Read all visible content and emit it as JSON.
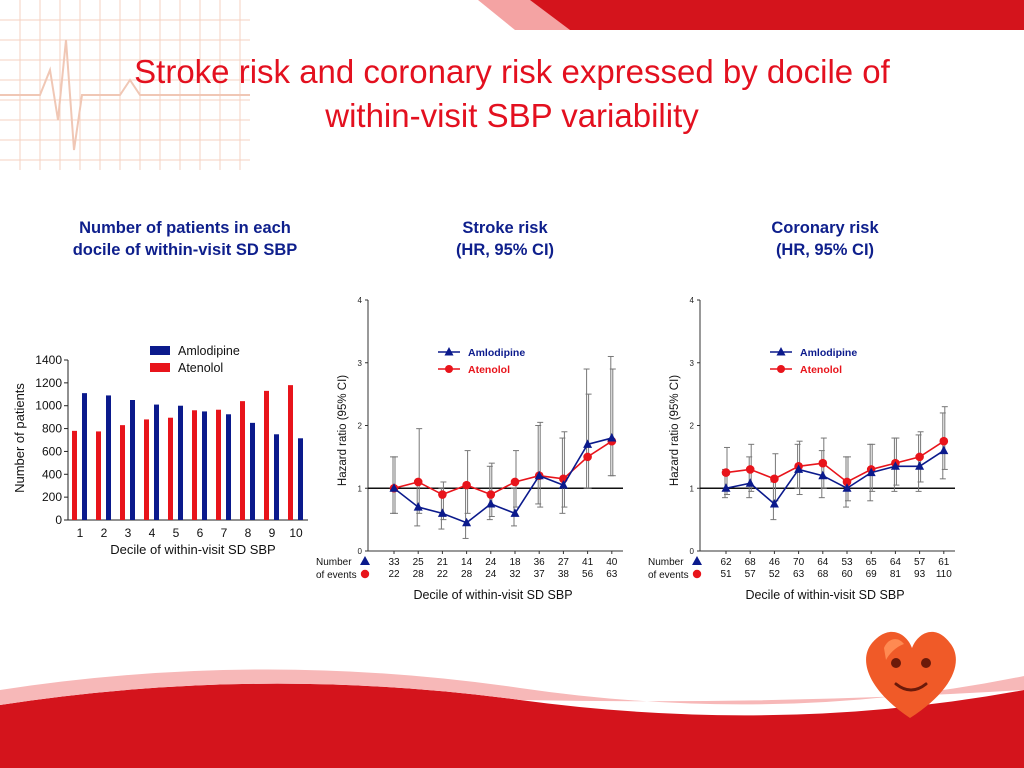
{
  "slide": {
    "title_line1": "Stroke risk and coronary risk expressed by docile of",
    "title_line2": "within-visit SBP variability"
  },
  "colors": {
    "title": "#e3101f",
    "panel_title": "#0e1f8c",
    "amlodipine": "#0b1a8c",
    "atenolol": "#e8141b"
  },
  "panels": {
    "counts_title_line1": "Number of patients in each",
    "counts_title_line2": "docile of within-visit SD SBP",
    "stroke_title_line1": "Stroke risk",
    "stroke_title_line2": "(HR, 95% CI)",
    "coronary_title_line1": "Coronary risk",
    "coronary_title_line2": "(HR, 95% CI)"
  },
  "chart_data": [
    {
      "type": "bar",
      "categories": [
        "1",
        "2",
        "3",
        "4",
        "5",
        "6",
        "7",
        "8",
        "9",
        "10"
      ],
      "series": [
        {
          "name": "Amlodipine",
          "color": "#0b1a8c",
          "values": [
            1110,
            1090,
            1050,
            1010,
            1000,
            950,
            925,
            850,
            750,
            715
          ]
        },
        {
          "name": "Atenolol",
          "color": "#e8141b",
          "values": [
            780,
            775,
            830,
            880,
            895,
            960,
            965,
            1040,
            1130,
            1180
          ]
        }
      ],
      "xlabel": "Decile of within-visit SD SBP",
      "ylabel": "Number of patients",
      "ylim": [
        0,
        1400
      ],
      "yticks": [
        0,
        200,
        400,
        600,
        800,
        1000,
        1200,
        1400
      ],
      "legend": "top"
    },
    {
      "type": "line",
      "x": [
        1,
        2,
        3,
        4,
        5,
        6,
        7,
        8,
        9,
        10
      ],
      "series": [
        {
          "name": "Amlodipine",
          "color": "#0b1a8c",
          "marker": "triangle",
          "values": [
            1.0,
            0.7,
            0.6,
            0.45,
            0.75,
            0.6,
            1.2,
            1.05,
            1.7,
            1.8
          ],
          "ci_low": [
            0.6,
            0.4,
            0.35,
            0.2,
            0.5,
            0.4,
            0.75,
            0.6,
            1.0,
            1.2
          ],
          "ci_high": [
            1.5,
            1.1,
            1.0,
            1.0,
            1.35,
            1.0,
            2.0,
            1.8,
            2.9,
            3.1
          ],
          "events": [
            "33",
            "25",
            "21",
            "14",
            "24",
            "18",
            "36",
            "27",
            "41",
            "40"
          ]
        },
        {
          "name": "Atenolol",
          "color": "#e8141b",
          "marker": "circle",
          "values": [
            1.0,
            1.1,
            0.9,
            1.05,
            0.9,
            1.1,
            1.2,
            1.15,
            1.5,
            1.75
          ],
          "ci_low": [
            0.6,
            0.6,
            0.5,
            0.6,
            0.55,
            0.7,
            0.7,
            0.7,
            1.0,
            1.2
          ],
          "ci_high": [
            1.5,
            1.95,
            1.1,
            1.6,
            1.4,
            1.6,
            2.05,
            1.9,
            2.5,
            2.9
          ],
          "events": [
            "22",
            "28",
            "22",
            "28",
            "24",
            "32",
            "37",
            "38",
            "56",
            "63"
          ]
        }
      ],
      "xlabel": "Decile of within-visit SD SBP",
      "ylabel": "Hazard  ratio (95% CI)",
      "ylim": [
        0,
        4
      ],
      "yticks": [
        0,
        1,
        2,
        3,
        4
      ],
      "reference_line": 1,
      "row_label_line1": "Number",
      "row_label_line2": "of events",
      "legend": "top-left"
    },
    {
      "type": "line",
      "x": [
        1,
        2,
        3,
        4,
        5,
        6,
        7,
        8,
        9,
        10
      ],
      "series": [
        {
          "name": "Amlodipine",
          "color": "#0b1a8c",
          "marker": "triangle",
          "values": [
            1.0,
            1.08,
            0.75,
            1.3,
            1.2,
            1.0,
            1.25,
            1.35,
            1.35,
            1.6
          ],
          "ci_low": [
            0.85,
            0.85,
            0.5,
            1.0,
            0.85,
            0.7,
            0.8,
            0.95,
            0.95,
            1.15
          ],
          "ci_high": [
            1.3,
            1.5,
            1.1,
            1.7,
            1.6,
            1.5,
            1.7,
            1.8,
            1.85,
            2.2
          ],
          "events": [
            "62",
            "68",
            "46",
            "70",
            "64",
            "53",
            "65",
            "64",
            "57",
            "61"
          ]
        },
        {
          "name": "Atenolol",
          "color": "#e8141b",
          "marker": "circle",
          "values": [
            1.25,
            1.3,
            1.15,
            1.35,
            1.4,
            1.1,
            1.3,
            1.4,
            1.5,
            1.75
          ],
          "ci_low": [
            0.9,
            0.95,
            0.8,
            0.9,
            1.0,
            0.8,
            0.95,
            1.05,
            1.1,
            1.3
          ],
          "ci_high": [
            1.65,
            1.7,
            1.55,
            1.75,
            1.8,
            1.5,
            1.7,
            1.8,
            1.9,
            2.3
          ],
          "events": [
            "51",
            "57",
            "52",
            "63",
            "68",
            "60",
            "69",
            "81",
            "93",
            "110"
          ]
        }
      ],
      "xlabel": "Decile of within-visit SD SBP",
      "ylabel": "Hazard  ratio (95% CI)",
      "ylim": [
        0,
        4
      ],
      "yticks": [
        0,
        1,
        2,
        3,
        4
      ],
      "reference_line": 1,
      "row_label_line1": "Number",
      "row_label_line2": "of events",
      "legend": "top-left"
    }
  ]
}
